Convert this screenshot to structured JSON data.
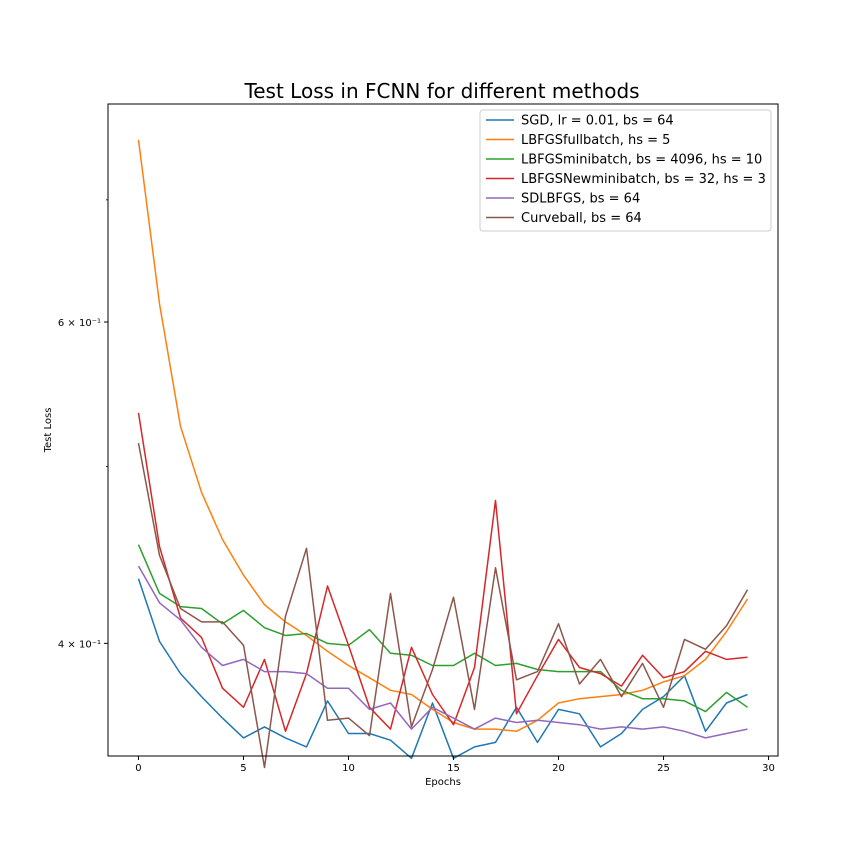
{
  "chart_data": {
    "type": "line",
    "title": "Test Loss in FCNN for different methods",
    "xlabel": "Epochs",
    "ylabel": "Test Loss",
    "xlim": [
      -1.45,
      30.45
    ],
    "ylim": [
      0.347,
      0.79
    ],
    "yscale": "log",
    "xticks": [
      0,
      5,
      10,
      15,
      20,
      25,
      30
    ],
    "xtick_labels": [
      "0",
      "5",
      "10",
      "15",
      "20",
      "25",
      "30"
    ],
    "yticks": [
      0.4,
      0.6
    ],
    "ytick_labels": [
      "4 × 10⁻¹",
      "6 × 10⁻¹"
    ],
    "grid": false,
    "legend_position": "top-right",
    "x": [
      0,
      1,
      2,
      3,
      4,
      5,
      6,
      7,
      8,
      9,
      10,
      11,
      12,
      13,
      14,
      15,
      16,
      17,
      18,
      19,
      20,
      21,
      22,
      23,
      24,
      25,
      26,
      27,
      28,
      29
    ],
    "series": [
      {
        "name": "SGD, lr = 0.01, bs = 64",
        "color": "#1f77b4",
        "values": [
          0.434,
          0.401,
          0.385,
          0.374,
          0.364,
          0.355,
          0.36,
          0.355,
          0.351,
          0.372,
          0.357,
          0.357,
          0.354,
          0.346,
          0.371,
          0.346,
          0.351,
          0.353,
          0.369,
          0.353,
          0.368,
          0.366,
          0.351,
          0.357,
          0.368,
          0.374,
          0.384,
          0.358,
          0.371,
          0.375
        ]
      },
      {
        "name": "LBFGSfullbatch, hs = 5",
        "color": "#ff7f0e",
        "values": [
          0.755,
          0.614,
          0.526,
          0.484,
          0.456,
          0.436,
          0.42,
          0.411,
          0.404,
          0.396,
          0.389,
          0.383,
          0.377,
          0.375,
          0.368,
          0.362,
          0.359,
          0.359,
          0.358,
          0.363,
          0.371,
          0.373,
          0.374,
          0.375,
          0.377,
          0.381,
          0.384,
          0.392,
          0.406,
          0.423
        ]
      },
      {
        "name": "LBFGSminibatch, bs = 4096, hs = 10",
        "color": "#2ca02c",
        "values": [
          0.453,
          0.426,
          0.419,
          0.418,
          0.41,
          0.417,
          0.408,
          0.404,
          0.405,
          0.4,
          0.399,
          0.407,
          0.395,
          0.394,
          0.389,
          0.389,
          0.395,
          0.389,
          0.39,
          0.387,
          0.386,
          0.386,
          0.386,
          0.377,
          0.373,
          0.373,
          0.372,
          0.367,
          0.376,
          0.369
        ]
      },
      {
        "name": "LBFGSNewminibatch, bs = 32, hs = 3",
        "color": "#d62728",
        "values": [
          0.535,
          0.452,
          0.413,
          0.403,
          0.378,
          0.369,
          0.392,
          0.358,
          0.385,
          0.43,
          0.399,
          0.369,
          0.359,
          0.398,
          0.375,
          0.361,
          0.388,
          0.479,
          0.366,
          0.384,
          0.402,
          0.388,
          0.385,
          0.379,
          0.394,
          0.383,
          0.386,
          0.396,
          0.392,
          0.393
        ]
      },
      {
        "name": "SDLBFGS, bs = 64",
        "color": "#9467bd",
        "values": [
          0.441,
          0.421,
          0.412,
          0.398,
          0.389,
          0.392,
          0.386,
          0.386,
          0.385,
          0.378,
          0.378,
          0.368,
          0.371,
          0.359,
          0.369,
          0.364,
          0.359,
          0.364,
          0.362,
          0.363,
          0.362,
          0.361,
          0.359,
          0.36,
          0.359,
          0.36,
          0.358,
          0.355,
          0.357,
          0.359
        ]
      },
      {
        "name": "Curveball, bs = 64",
        "color": "#8c564b",
        "values": [
          0.515,
          0.447,
          0.418,
          0.411,
          0.411,
          0.399,
          0.342,
          0.414,
          0.451,
          0.363,
          0.364,
          0.356,
          0.426,
          0.36,
          0.387,
          0.424,
          0.368,
          0.44,
          0.382,
          0.386,
          0.41,
          0.38,
          0.392,
          0.374,
          0.39,
          0.369,
          0.402,
          0.397,
          0.409,
          0.428
        ]
      }
    ]
  }
}
